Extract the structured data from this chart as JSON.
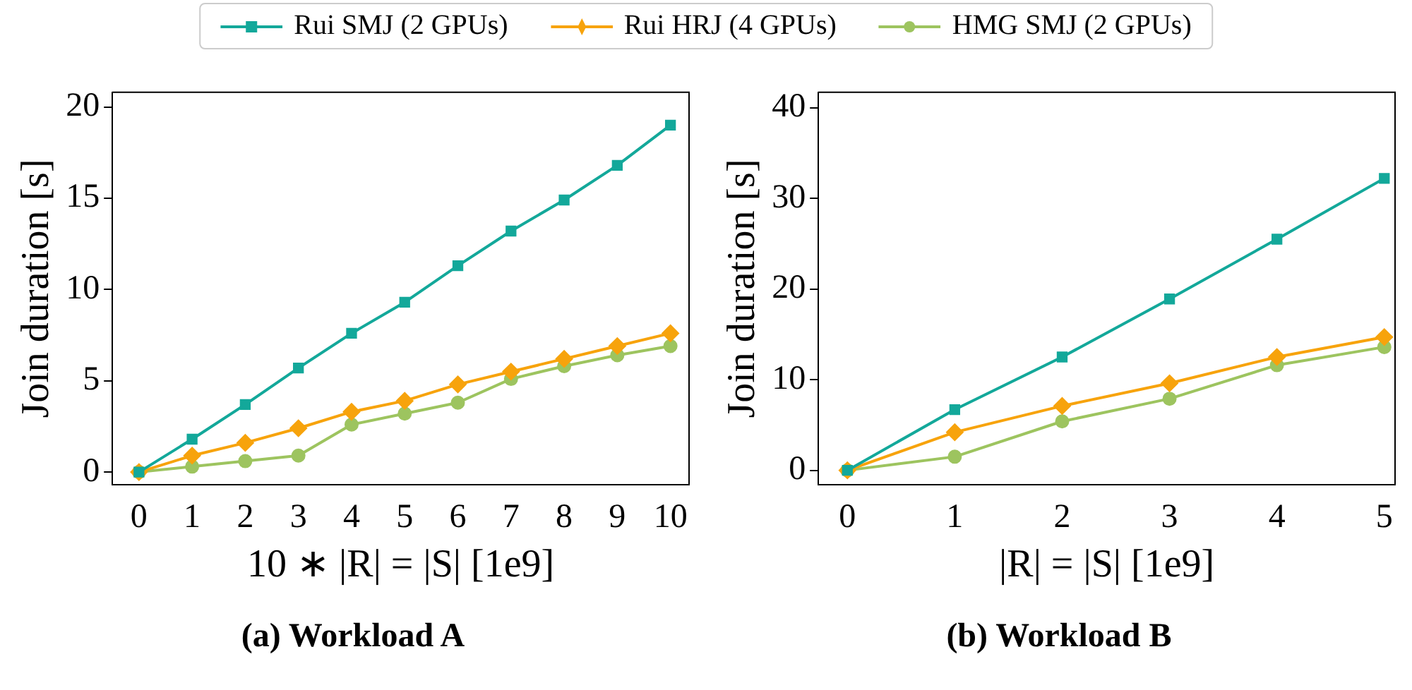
{
  "chart_data": [
    {
      "type": "line",
      "x": [
        0,
        1,
        2,
        3,
        4,
        5,
        6,
        7,
        8,
        9,
        10
      ],
      "xlabel": "10 ∗ |R| = |S| [1e9]",
      "ylabel": "Join duration [s]",
      "xlim": [
        -0.5,
        10.35
      ],
      "ylim": [
        -0.7,
        20.8
      ],
      "xticks": [
        0,
        1,
        2,
        3,
        4,
        5,
        6,
        7,
        8,
        9,
        10
      ],
      "yticks": [
        0,
        5,
        10,
        15,
        20
      ],
      "legend": "top",
      "annotations": [
        "(a) Workload A"
      ],
      "series": [
        {
          "name": "Rui SMJ (2 GPUs)",
          "color": "#13a89a",
          "marker": "square",
          "values": [
            0,
            1.8,
            3.7,
            5.7,
            7.6,
            9.3,
            11.3,
            13.2,
            14.9,
            16.8,
            19.0
          ]
        },
        {
          "name": "Rui HRJ (4 GPUs)",
          "color": "#f7a30c",
          "marker": "diamond",
          "values": [
            0,
            0.9,
            1.6,
            2.4,
            3.3,
            3.9,
            4.8,
            5.5,
            6.2,
            6.9,
            7.6
          ]
        },
        {
          "name": "HMG SMJ (2 GPUs)",
          "color": "#9dc45f",
          "marker": "circle",
          "values": [
            0,
            0.3,
            0.6,
            0.9,
            2.6,
            3.2,
            3.8,
            5.1,
            5.8,
            6.4,
            6.9
          ]
        }
      ]
    },
    {
      "type": "line",
      "x": [
        0,
        1,
        2,
        3,
        4,
        5
      ],
      "xlabel": "|R| = |S| [1e9]",
      "ylabel": "Join duration [s]",
      "xlim": [
        -0.27,
        5.1
      ],
      "ylim": [
        -1.6,
        41.7
      ],
      "xticks": [
        0,
        1,
        2,
        3,
        4,
        5
      ],
      "yticks": [
        0,
        10,
        20,
        30,
        40
      ],
      "annotations": [
        "(b) Workload B"
      ],
      "series": [
        {
          "color": "#13a89a",
          "marker": "square",
          "values": [
            0,
            6.7,
            12.5,
            18.9,
            25.5,
            32.2
          ]
        },
        {
          "color": "#f7a30c",
          "marker": "diamond",
          "values": [
            0,
            4.2,
            7.1,
            9.6,
            12.5,
            14.7
          ]
        },
        {
          "color": "#9dc45f",
          "marker": "circle",
          "values": [
            0,
            1.5,
            5.4,
            7.9,
            11.6,
            13.6
          ]
        }
      ]
    }
  ]
}
